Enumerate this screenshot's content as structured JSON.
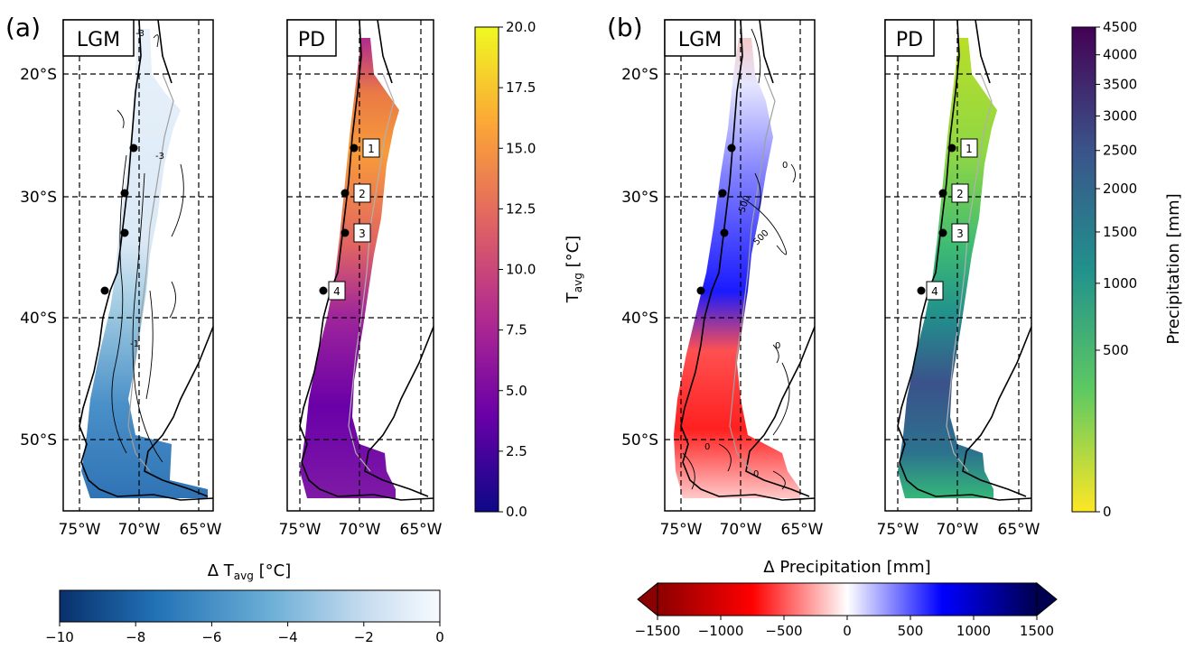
{
  "panels": [
    {
      "letter": "(a)",
      "maps": [
        {
          "title": "LGM",
          "kind": "dT"
        },
        {
          "title": "PD",
          "kind": "T",
          "sites": [
            "1",
            "2",
            "3",
            "4"
          ]
        }
      ]
    },
    {
      "letter": "(b)",
      "maps": [
        {
          "title": "LGM",
          "kind": "dP"
        },
        {
          "title": "PD",
          "kind": "P",
          "sites": [
            "1",
            "2",
            "3",
            "4"
          ]
        }
      ]
    }
  ],
  "lat_labels": [
    "20°S",
    "30°S",
    "40°S",
    "50°S"
  ],
  "lon_labels": [
    "75°W",
    "70°W",
    "65°W"
  ],
  "contour_labels": {
    "dT": [
      "-3",
      "-3",
      "-1"
    ],
    "dP": [
      "500",
      "500",
      "0",
      "0",
      "0",
      "0"
    ]
  },
  "colorbars": {
    "T": {
      "label": "T",
      "label_sub": "avg",
      "label_unit": " [°C]",
      "ticks": [
        "0.0",
        "2.5",
        "5.0",
        "7.5",
        "10.0",
        "12.5",
        "15.0",
        "17.5",
        "20.0"
      ],
      "range": [
        0,
        20
      ],
      "colors": [
        "#0d0887",
        "#6a00a8",
        "#b12a90",
        "#e16462",
        "#fca636",
        "#f0f921"
      ]
    },
    "P": {
      "label": "Precipitation [mm]",
      "ticks": [
        "0",
        "500",
        "1000",
        "1500",
        "2000",
        "2500",
        "3000",
        "3500",
        "4000",
        "4500"
      ],
      "range": [
        0,
        4500
      ],
      "colors": [
        "#fde725",
        "#5ec962",
        "#21918c",
        "#3b528b",
        "#440154"
      ]
    },
    "dT": {
      "label": "Δ T",
      "label_sub": "avg",
      "label_unit": " [°C]",
      "ticks": [
        "−10",
        "−8",
        "−6",
        "−4",
        "−2",
        "0"
      ],
      "range": [
        -10,
        0
      ],
      "colors": [
        "#08306b",
        "#2171b5",
        "#6baed6",
        "#c6dbef",
        "#f7fbff"
      ]
    },
    "dP": {
      "label": "Δ Precipitation [mm]",
      "ticks": [
        "−1500",
        "−1000",
        "−500",
        "0",
        "500",
        "1000",
        "1500"
      ],
      "range": [
        -1500,
        1500
      ],
      "colors": [
        "#8b0000",
        "#ff0000",
        "#ffffff",
        "#0000ff",
        "#00004f"
      ]
    }
  }
}
